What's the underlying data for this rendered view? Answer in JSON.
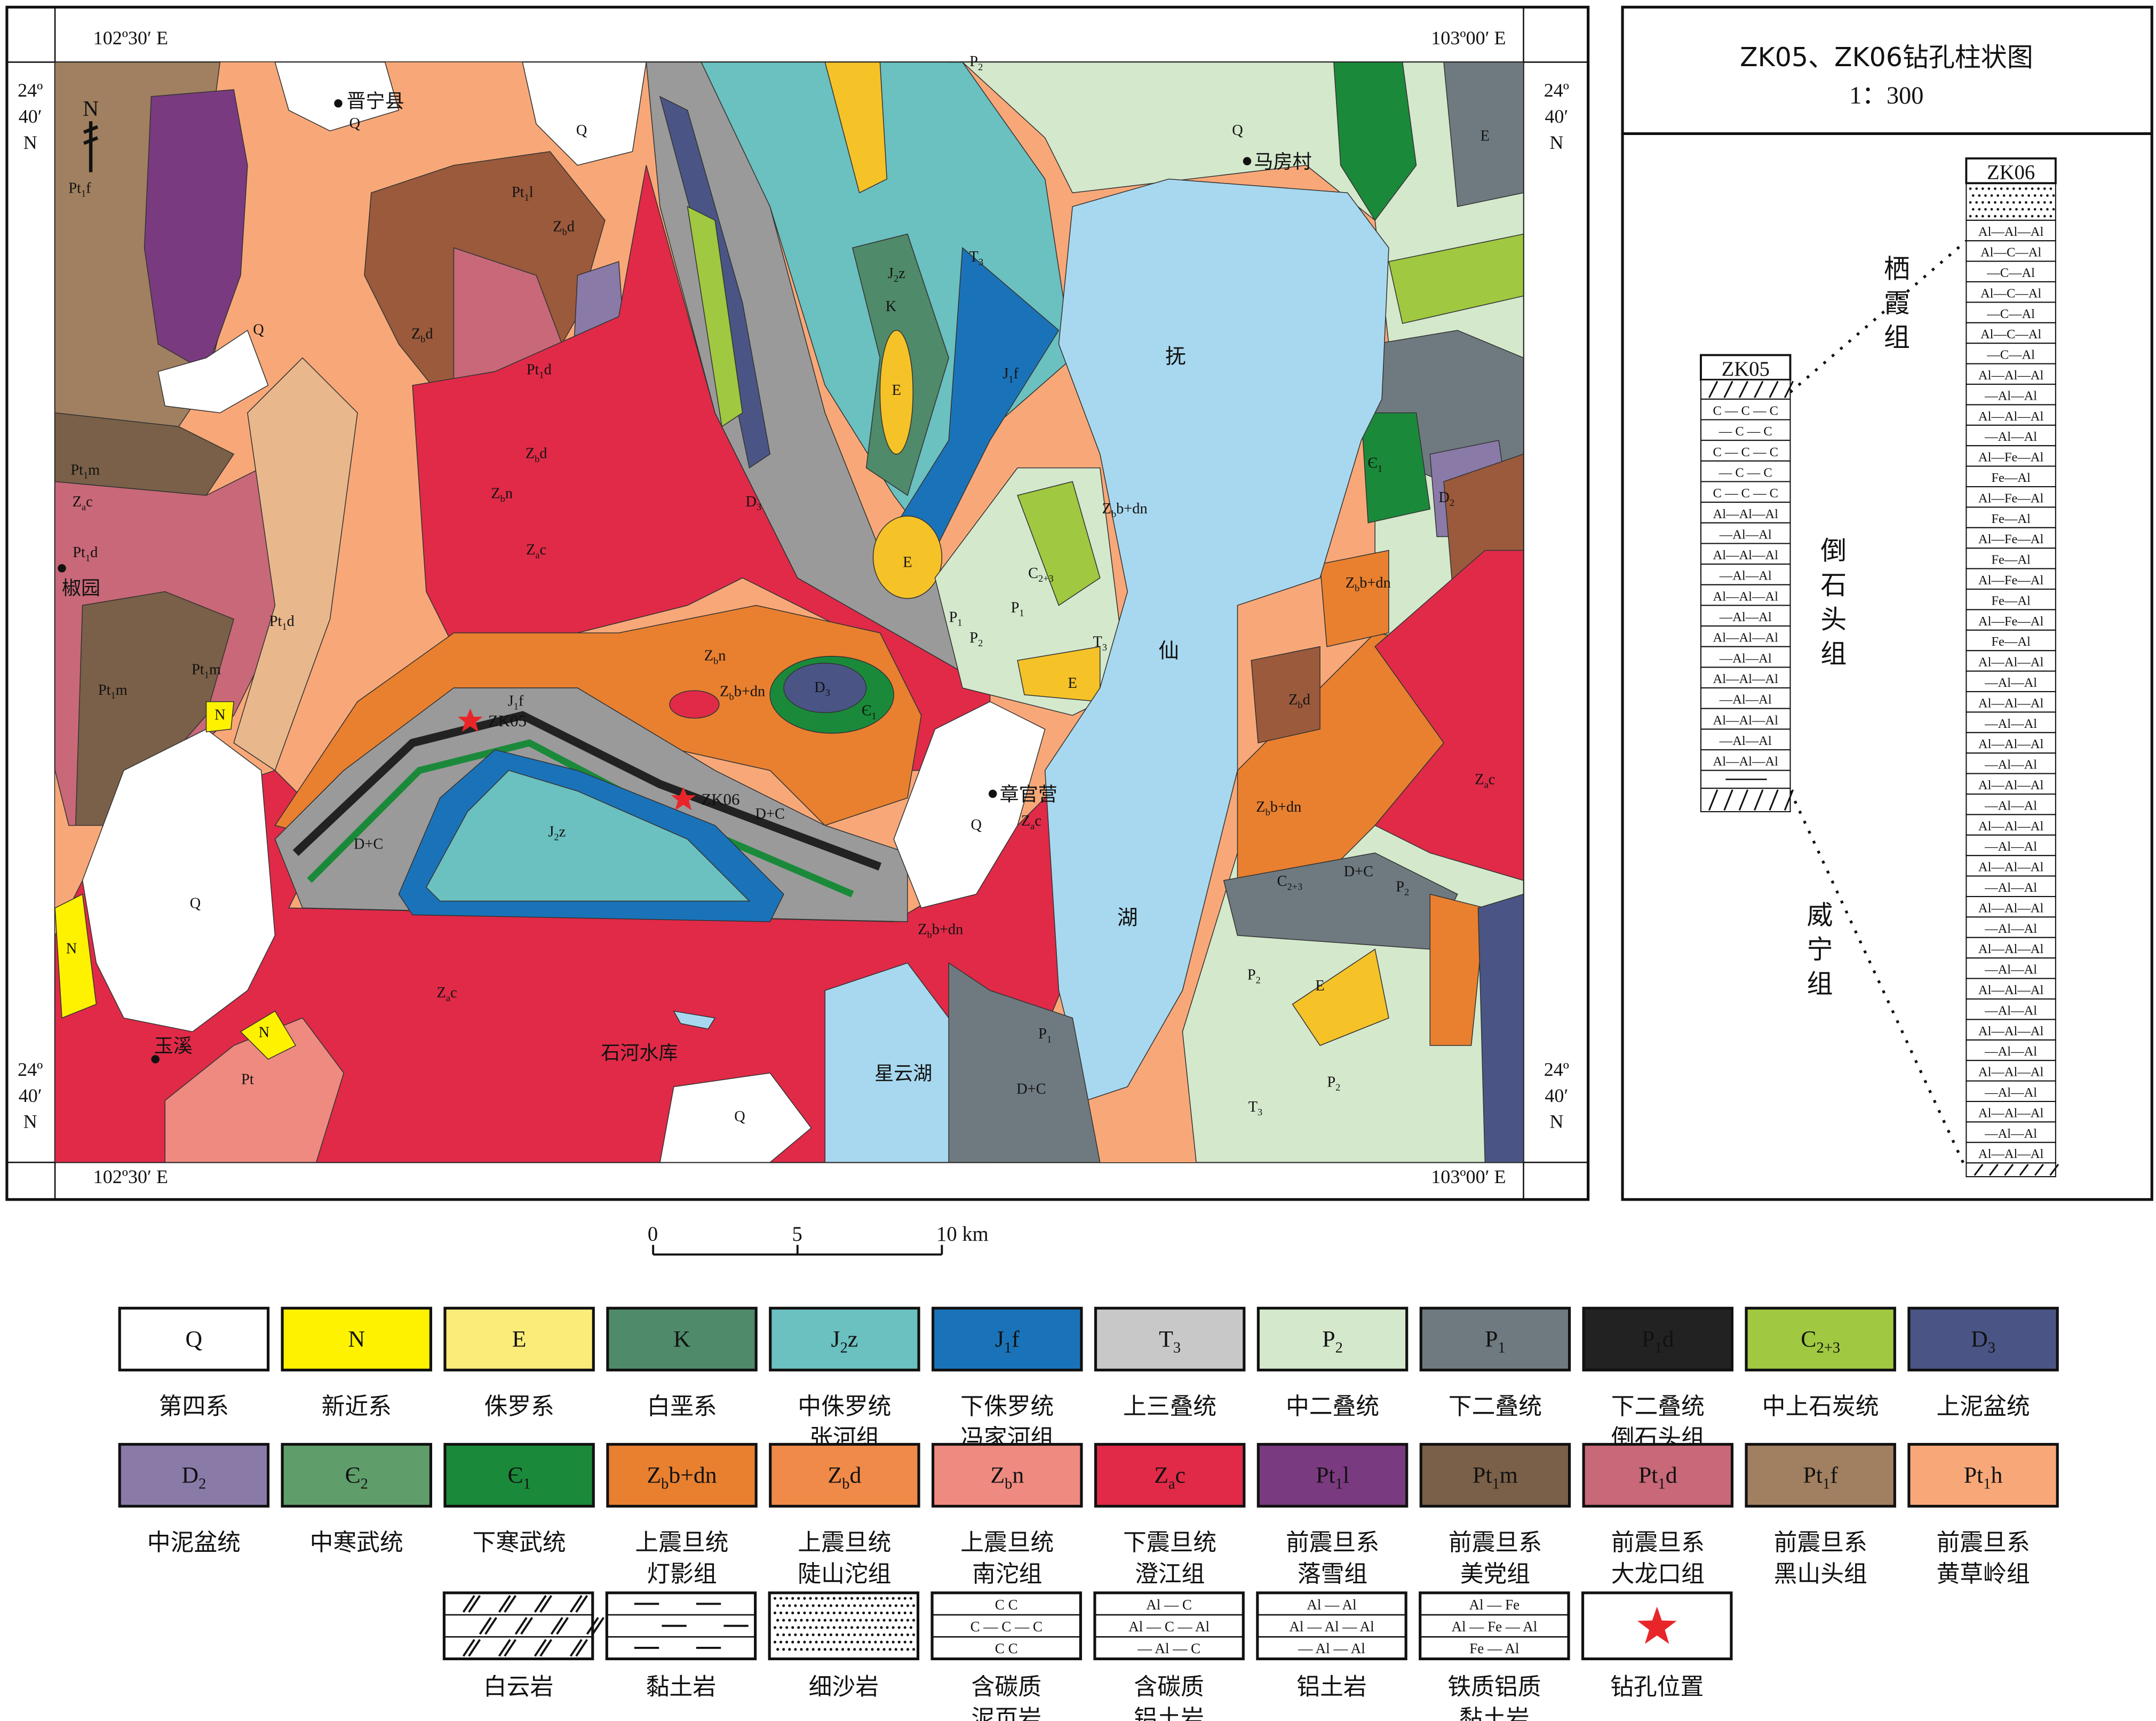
{
  "map": {
    "lon_west": "102º30′ E",
    "lon_east": "103º00′ E",
    "lat": [
      "24º",
      "40′",
      "N"
    ],
    "north": "N",
    "places": [
      "晋宁县",
      "马房村",
      "椒园",
      "章官营",
      "玉溪",
      "石河水库",
      "星云湖"
    ],
    "lake_name": [
      "抚",
      "仙",
      "湖"
    ],
    "boreholes": [
      "ZK05",
      "ZK06"
    ],
    "units": [
      {
        "base": "Q"
      },
      {
        "base": "Q"
      },
      {
        "base": "Q"
      },
      {
        "base": "Q"
      },
      {
        "base": "Q"
      },
      {
        "base": "Q"
      },
      {
        "base": "Q"
      },
      {
        "base": "Pt",
        "sub": "1",
        "rest": "f"
      },
      {
        "base": "Pt",
        "sub": "1",
        "rest": "m"
      },
      {
        "base": "Pt",
        "sub": "1",
        "rest": "m"
      },
      {
        "base": "Pt",
        "sub": "1",
        "rest": "m"
      },
      {
        "base": "Pt",
        "sub": "1",
        "rest": "d"
      },
      {
        "base": "Pt",
        "sub": "1",
        "rest": "d"
      },
      {
        "base": "Pt",
        "sub": "1",
        "rest": "d"
      },
      {
        "base": "Pt",
        "sub": "1",
        "rest": "l"
      },
      {
        "base": "Z",
        "sub": "a",
        "rest": "c"
      },
      {
        "base": "Z",
        "sub": "a",
        "rest": "c"
      },
      {
        "base": "Z",
        "sub": "a",
        "rest": "c"
      },
      {
        "base": "Z",
        "sub": "a",
        "rest": "c"
      },
      {
        "base": "Z",
        "sub": "a",
        "rest": "c"
      },
      {
        "base": "Z",
        "sub": "b",
        "rest": "d"
      },
      {
        "base": "Z",
        "sub": "b",
        "rest": "d"
      },
      {
        "base": "Z",
        "sub": "b",
        "rest": "d"
      },
      {
        "base": "Z",
        "sub": "b",
        "rest": "d"
      },
      {
        "base": "Z",
        "sub": "b",
        "rest": "n"
      },
      {
        "base": "Z",
        "sub": "b",
        "rest": "n"
      },
      {
        "base": "Z",
        "sub": "b",
        "rest": "b+dn"
      },
      {
        "base": "Z",
        "sub": "b",
        "rest": "b+dn"
      },
      {
        "base": "Z",
        "sub": "b",
        "rest": "b+dn"
      },
      {
        "base": "Z",
        "sub": "b",
        "rest": "b+dn"
      },
      {
        "base": "Z",
        "sub": "b",
        "rest": "b+dn"
      },
      {
        "base": "J",
        "sub": "2",
        "rest": "z"
      },
      {
        "base": "J",
        "sub": "2",
        "rest": "z"
      },
      {
        "base": "J",
        "sub": "1",
        "rest": "f"
      },
      {
        "base": "J",
        "sub": "1",
        "rest": "f"
      },
      {
        "base": "K"
      },
      {
        "base": "E"
      },
      {
        "base": "E"
      },
      {
        "base": "E"
      },
      {
        "base": "E"
      },
      {
        "base": "E"
      },
      {
        "base": "T",
        "sub": "3"
      },
      {
        "base": "T",
        "sub": "3"
      },
      {
        "base": "T",
        "sub": "3"
      },
      {
        "base": "P",
        "sub": "2"
      },
      {
        "base": "P",
        "sub": "2"
      },
      {
        "base": "P",
        "sub": "2"
      },
      {
        "base": "P",
        "sub": "2"
      },
      {
        "base": "P",
        "sub": "2"
      },
      {
        "base": "P",
        "sub": "1"
      },
      {
        "base": "P",
        "sub": "1"
      },
      {
        "base": "P",
        "sub": "1"
      },
      {
        "base": "C",
        "sub": "2+3"
      },
      {
        "base": "C",
        "sub": "2+3"
      },
      {
        "base": "D",
        "sub": "3"
      },
      {
        "base": "D",
        "sub": "3"
      },
      {
        "base": "D",
        "sub": "2"
      },
      {
        "base": "D+C"
      },
      {
        "base": "D+C"
      },
      {
        "base": "D+C"
      },
      {
        "base": "D+C"
      },
      {
        "base": "Є",
        "sub": "1"
      },
      {
        "base": "Є",
        "sub": "1"
      },
      {
        "base": "Pt"
      },
      {
        "base": "N"
      },
      {
        "base": "N"
      },
      {
        "base": "N"
      }
    ],
    "scale_bar": {
      "ticks": [
        0,
        5,
        {
          "value": 10,
          "label": "10 km"
        }
      ]
    }
  },
  "column": {
    "title": "ZK05、ZK06钻孔柱状图",
    "scale": "1：300",
    "formations": [
      "栖霞组",
      "倒石头组",
      "威宁组"
    ],
    "zk05": {
      "name": "ZK05",
      "rows": [
        "C — C — C",
        "— C — C",
        "C — C — C",
        "— C — C",
        "C — C — C",
        "Al—Al—Al",
        "—Al—Al",
        "Al—Al—Al",
        "—Al—Al",
        "Al—Al—Al",
        "—Al—Al",
        "Al—Al—Al",
        "—Al—Al",
        "Al—Al—Al",
        "—Al—Al",
        "Al—Al—Al",
        "—Al—Al",
        "Al—Al—Al"
      ]
    },
    "zk06": {
      "name": "ZK06",
      "rows": [
        "Al—Al—Al",
        "Al—C—Al",
        "—C—Al",
        "Al—C—Al",
        "—C—Al",
        "Al—C—Al",
        "—C—Al",
        "Al—Al—Al",
        "—Al—Al",
        "Al—Al—Al",
        "—Al—Al",
        "Al—Fe—Al",
        "Fe—Al",
        "Al—Fe—Al",
        "Fe—Al",
        "Al—Fe—Al",
        "Fe—Al",
        "Al—Fe—Al",
        "Fe—Al",
        "Al—Fe—Al",
        "Fe—Al",
        "Al—Al—Al",
        "—Al—Al",
        "Al—Al—Al",
        "—Al—Al",
        "Al—Al—Al",
        "—Al—Al",
        "Al—Al—Al",
        "—Al—Al",
        "Al—Al—Al",
        "—Al—Al",
        "Al—Al—Al",
        "—Al—Al",
        "Al—Al—Al",
        "—Al—Al",
        "Al—Al—Al",
        "—Al—Al",
        "Al—Al—Al",
        "—Al—Al",
        "Al—Al—Al",
        "—Al—Al",
        "Al—Al—Al",
        "—Al—Al",
        "Al—Al—Al",
        "—Al—Al",
        "Al—Al—Al"
      ]
    }
  },
  "legend": [
    {
      "code": {
        "base": "Q"
      },
      "color": "#ffffff",
      "label": [
        "第四系"
      ]
    },
    {
      "code": {
        "base": "N"
      },
      "color": "#fff200",
      "label": [
        "新近系"
      ]
    },
    {
      "code": {
        "base": "E"
      },
      "color": "#fbec7a",
      "label": [
        "侏罗系"
      ]
    },
    {
      "code": {
        "base": "K"
      },
      "color": "#4f8a6a",
      "label": [
        "白垩系"
      ]
    },
    {
      "code": {
        "base": "J",
        "sub": "2",
        "rest": "z"
      },
      "color": "#6bc0c0",
      "label": [
        "中侏罗统",
        "张河组"
      ]
    },
    {
      "code": {
        "base": "J",
        "sub": "1",
        "rest": "f"
      },
      "color": "#1a73b8",
      "label": [
        "下侏罗统",
        "冯家河组"
      ]
    },
    {
      "code": {
        "base": "T",
        "sub": "3"
      },
      "color": "#c8c8c8",
      "label": [
        "上三叠统"
      ]
    },
    {
      "code": {
        "base": "P",
        "sub": "2"
      },
      "color": "#d4e8cc",
      "label": [
        "中二叠统"
      ]
    },
    {
      "code": {
        "base": "P",
        "sub": "1"
      },
      "color": "#6f7a80",
      "label": [
        "下二叠统"
      ]
    },
    {
      "code": {
        "base": "P",
        "sub": "1",
        "rest": "d"
      },
      "color": "#222222",
      "label": [
        "下二叠统",
        "倒石头组"
      ]
    },
    {
      "code": {
        "base": "C",
        "sub": "2+3"
      },
      "color": "#a0c840",
      "label": [
        "中上石炭统"
      ]
    },
    {
      "code": {
        "base": "D",
        "sub": "3"
      },
      "color": "#4a5585",
      "label": [
        "上泥盆统"
      ]
    },
    {
      "code": {
        "base": "D",
        "sub": "2"
      },
      "color": "#8a7aa8",
      "label": [
        "中泥盆统"
      ]
    },
    {
      "code": {
        "base": "Є",
        "sub": "2"
      },
      "color": "#5f9e6a",
      "label": [
        "中寒武统"
      ]
    },
    {
      "code": {
        "base": "Є",
        "sub": "1"
      },
      "color": "#1a8a3a",
      "label": [
        "下寒武统"
      ]
    },
    {
      "code": {
        "base": "Z",
        "sub": "b",
        "rest": "b+dn"
      },
      "color": "#e88030",
      "label": [
        "上震旦统",
        "灯影组"
      ]
    },
    {
      "code": {
        "base": "Z",
        "sub": "b",
        "rest": "d"
      },
      "color": "#f08a48",
      "label": [
        "上震旦统",
        "陡山沱组"
      ]
    },
    {
      "code": {
        "base": "Z",
        "sub": "b",
        "rest": "n"
      },
      "color": "#ee8a80",
      "label": [
        "上震旦统",
        "南沱组"
      ]
    },
    {
      "code": {
        "base": "Z",
        "sub": "a",
        "rest": "c"
      },
      "color": "#e02a48",
      "label": [
        "下震旦统",
        "澄江组"
      ]
    },
    {
      "code": {
        "base": "Pt",
        "sub": "1",
        "rest": "l"
      },
      "color": "#7a3a80",
      "label": [
        "前震旦系",
        "落雪组"
      ]
    },
    {
      "code": {
        "base": "Pt",
        "sub": "1",
        "rest": "m"
      },
      "color": "#7a6048",
      "label": [
        "前震旦系",
        "美党组"
      ]
    },
    {
      "code": {
        "base": "Pt",
        "sub": "1",
        "rest": "d"
      },
      "color": "#c86878",
      "label": [
        "前震旦系",
        "大龙口组"
      ]
    },
    {
      "code": {
        "base": "Pt",
        "sub": "1",
        "rest": "f"
      },
      "color": "#a08060",
      "label": [
        "前震旦系",
        "黑山头组"
      ]
    },
    {
      "code": {
        "base": "Pt",
        "sub": "1",
        "rest": "h"
      },
      "color": "#f8a878",
      "label": [
        "前震旦系",
        "黄草岭组"
      ]
    }
  ],
  "lithology_legend": [
    {
      "label": [
        "白云岩"
      ]
    },
    {
      "label": [
        "黏土岩"
      ]
    },
    {
      "label": [
        "细沙岩"
      ]
    },
    {
      "label": [
        "含碳质",
        "泥页岩"
      ],
      "pattern_rows": [
        "C    C",
        "C — C — C",
        "C    C"
      ]
    },
    {
      "label": [
        "含碳质",
        "铝土岩"
      ],
      "pattern_rows": [
        "Al — C",
        "Al — C — Al",
        "— Al — C"
      ]
    },
    {
      "label": [
        "铝土岩"
      ],
      "pattern_rows": [
        "Al — Al",
        "Al — Al — Al",
        "— Al — Al"
      ]
    },
    {
      "label": [
        "铁质铝质",
        "黏土岩"
      ],
      "pattern_rows": [
        "Al — Fe",
        "Al — Fe — Al",
        "Fe — Al"
      ]
    },
    {
      "label": [
        "钻孔位置"
      ]
    }
  ]
}
